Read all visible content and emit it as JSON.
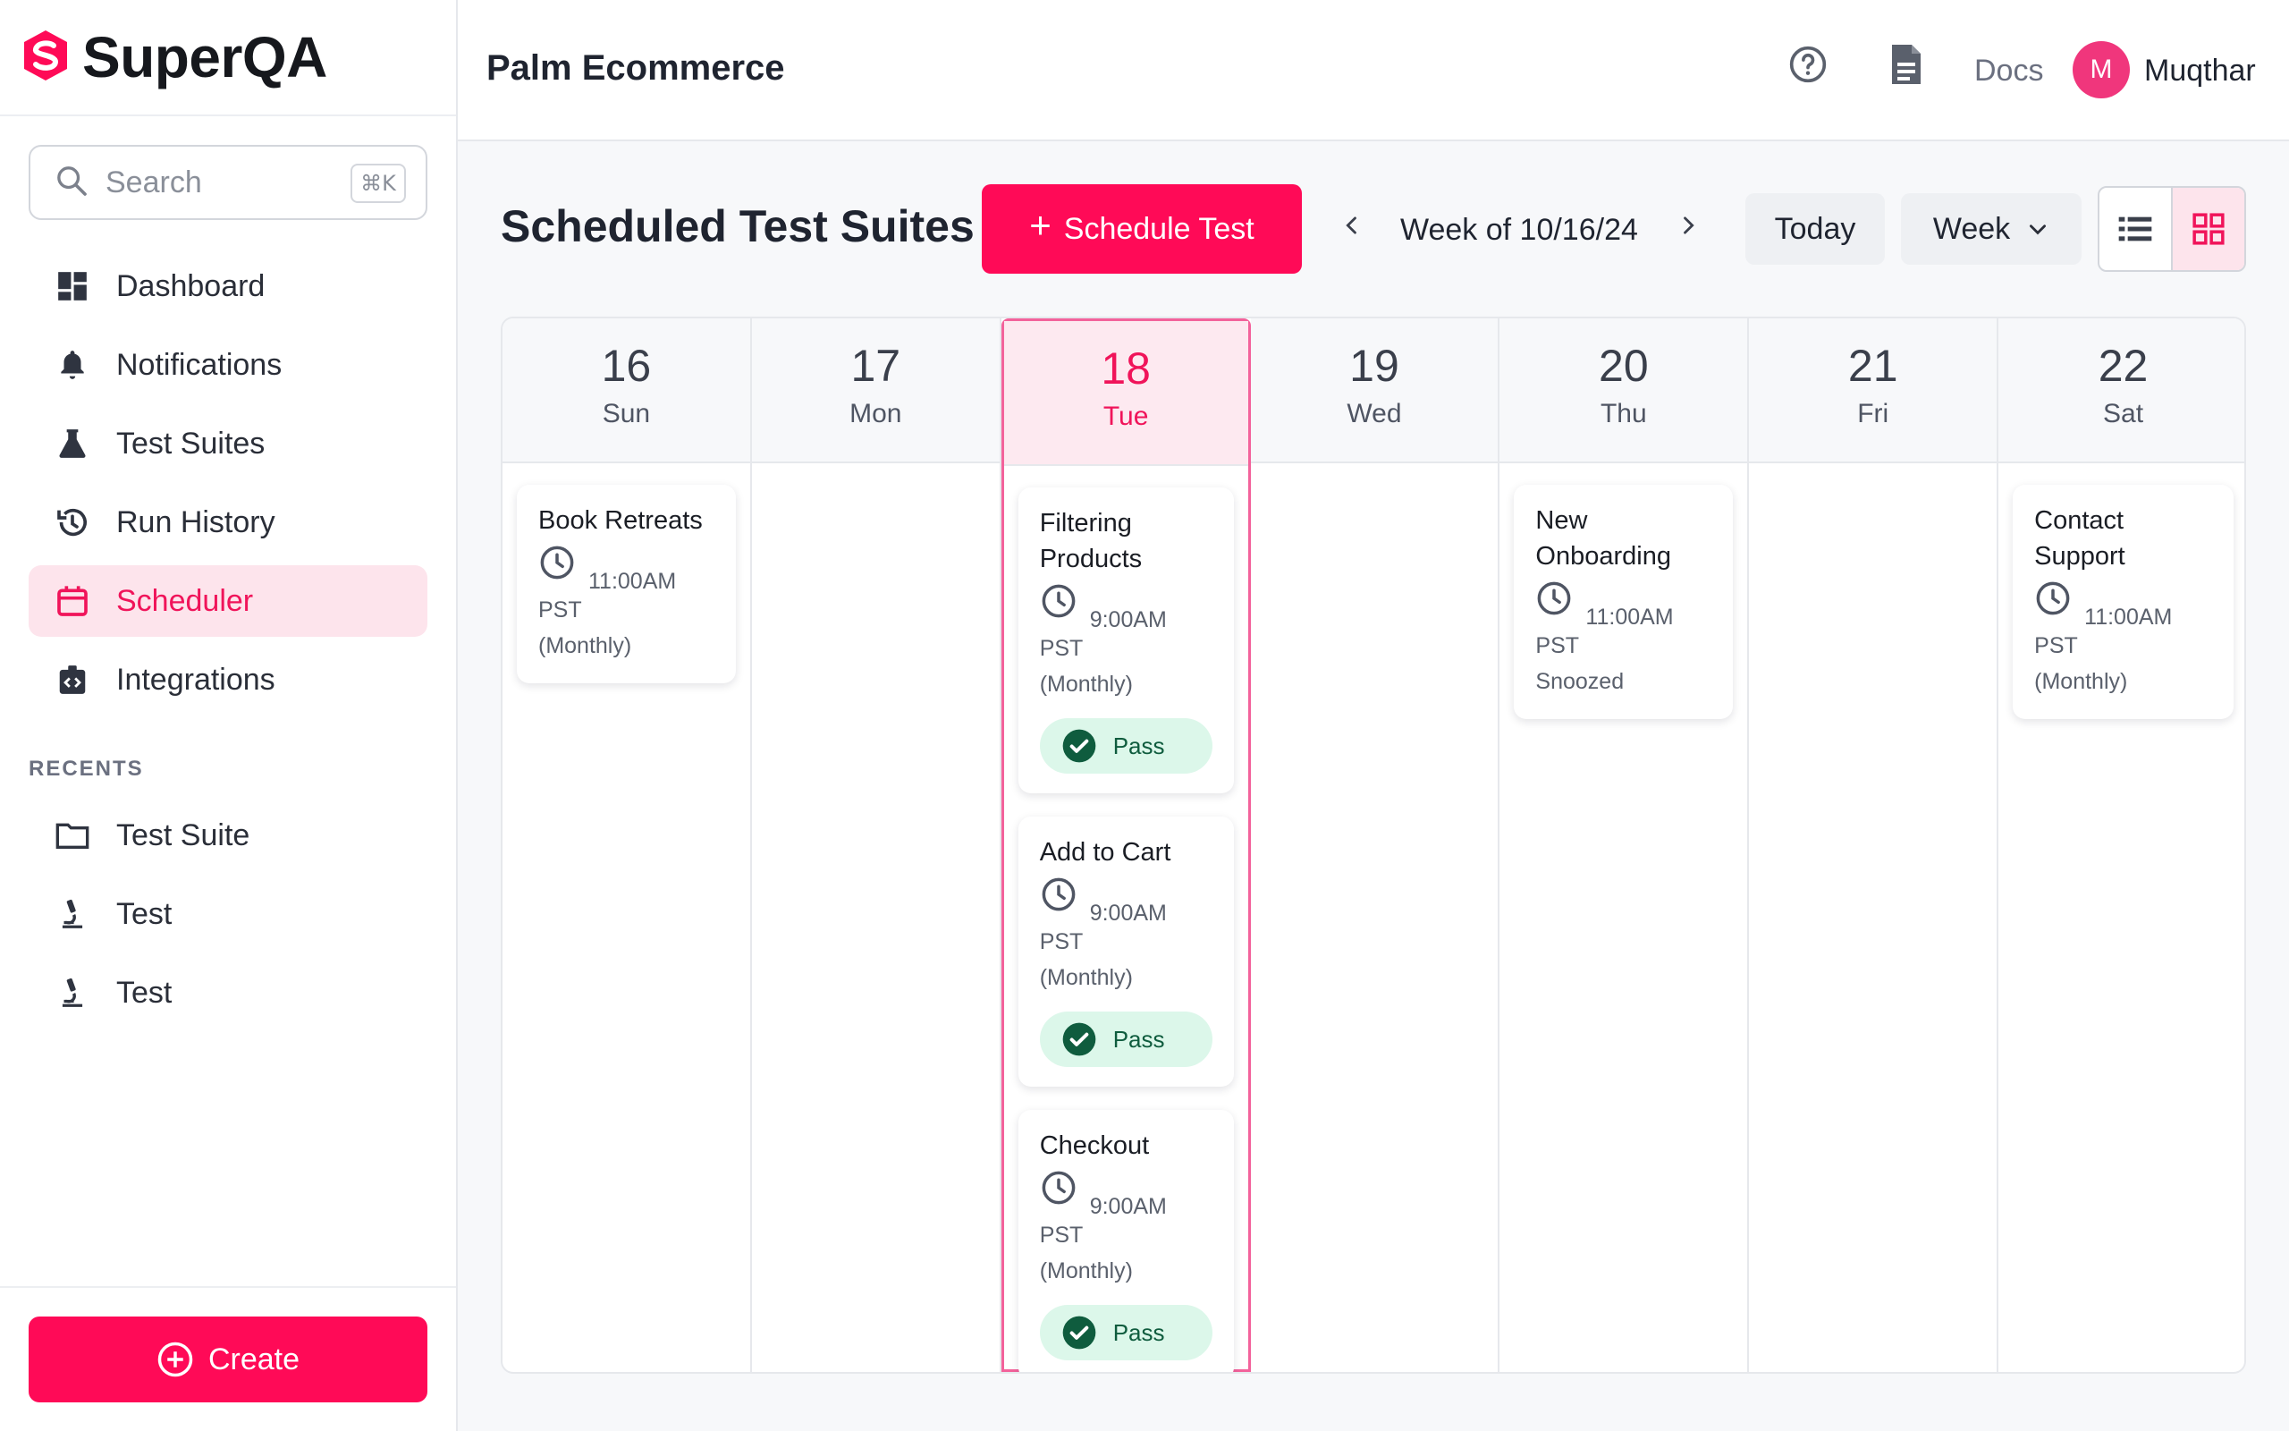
{
  "brand": {
    "name": "SuperQA",
    "color": "#ff0a57"
  },
  "search": {
    "placeholder": "Search",
    "shortcut": "⌘K"
  },
  "nav": [
    {
      "label": "Dashboard",
      "icon": "dashboard-icon",
      "active": false
    },
    {
      "label": "Notifications",
      "icon": "bell-icon",
      "active": false
    },
    {
      "label": "Test Suites",
      "icon": "flask-icon",
      "active": false
    },
    {
      "label": "Run History",
      "icon": "history-icon",
      "active": false
    },
    {
      "label": "Scheduler",
      "icon": "calendar-icon",
      "active": true
    },
    {
      "label": "Integrations",
      "icon": "integrations-icon",
      "active": false
    }
  ],
  "recents": {
    "heading": "RECENTS",
    "items": [
      {
        "label": "Test Suite",
        "icon": "folder-icon"
      },
      {
        "label": "Test",
        "icon": "microscope-icon"
      },
      {
        "label": "Test",
        "icon": "microscope-icon"
      }
    ]
  },
  "create_label": "Create",
  "topbar": {
    "project": "Palm Ecommerce",
    "docs": "Docs",
    "avatar_initial": "M",
    "username": "Muqthar"
  },
  "toolbar": {
    "title": "Scheduled Test Suites",
    "schedule_label": "Schedule Test",
    "week_label": "Week of 10/16/24",
    "today_label": "Today",
    "view_label": "Week"
  },
  "calendar": {
    "days": [
      {
        "num": "16",
        "dow": "Sun",
        "today": false,
        "events": [
          {
            "title": "Book Retreats",
            "time": "11:00AM",
            "tz": "PST",
            "recurrence": "(Monthly)",
            "status": ""
          }
        ]
      },
      {
        "num": "17",
        "dow": "Mon",
        "today": false,
        "events": []
      },
      {
        "num": "18",
        "dow": "Tue",
        "today": true,
        "events": [
          {
            "title": "Filtering Products",
            "time": "9:00AM",
            "tz": "PST",
            "recurrence": "(Monthly)",
            "status": "Pass"
          },
          {
            "title": "Add to Cart",
            "time": "9:00AM",
            "tz": "PST",
            "recurrence": "(Monthly)",
            "status": "Pass"
          },
          {
            "title": "Checkout",
            "time": "9:00AM",
            "tz": "PST",
            "recurrence": "(Monthly)",
            "status": "Pass"
          }
        ]
      },
      {
        "num": "19",
        "dow": "Wed",
        "today": false,
        "events": []
      },
      {
        "num": "20",
        "dow": "Thu",
        "today": false,
        "events": [
          {
            "title": "New Onboarding",
            "time": "11:00AM",
            "tz": "PST",
            "recurrence": "Snoozed",
            "status": ""
          }
        ]
      },
      {
        "num": "21",
        "dow": "Fri",
        "today": false,
        "events": []
      },
      {
        "num": "22",
        "dow": "Sat",
        "today": false,
        "events": [
          {
            "title": "Contact Support",
            "time": "11:00AM",
            "tz": "PST",
            "recurrence": "(Monthly)",
            "status": ""
          }
        ]
      }
    ]
  }
}
